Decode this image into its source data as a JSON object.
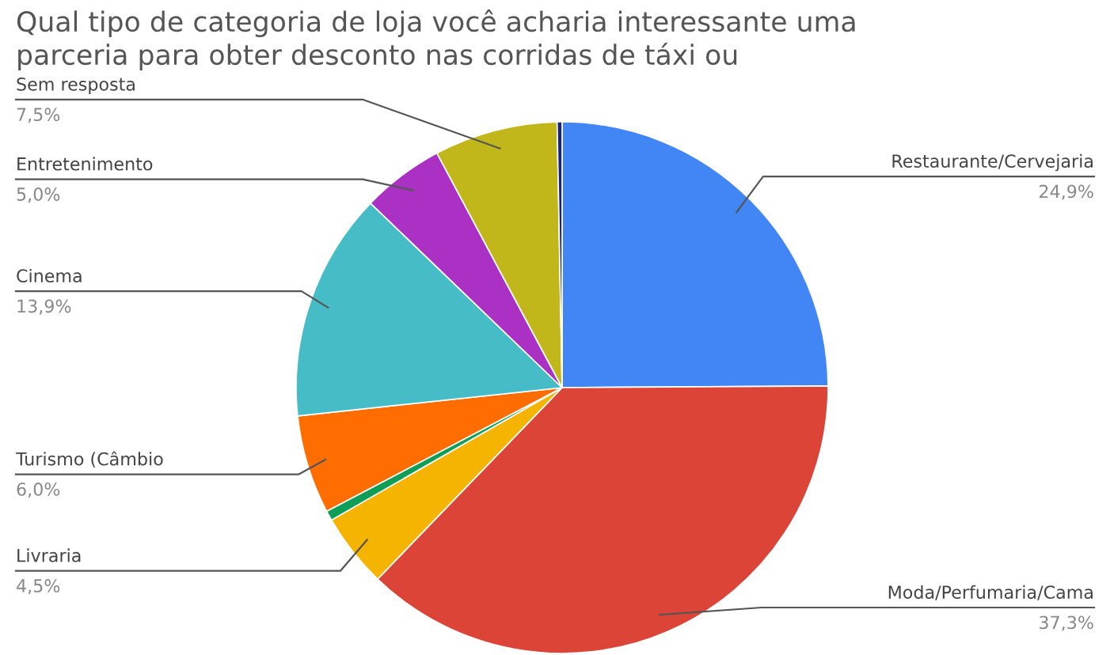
{
  "chart_data": {
    "type": "pie",
    "title": "Qual tipo de categoria de loja você acharia interessante uma\nparceria para obter desconto nas corridas de táxi ou",
    "categories": [
      "Restaurante/Cervejaria",
      "Moda/Perfumaria/Cama",
      "Livraria",
      null,
      "Turismo (Câmbio",
      "Cinema",
      "Entretenimento",
      "Sem resposta",
      null
    ],
    "values": [
      24.9,
      37.3,
      4.5,
      0.6,
      6.0,
      13.9,
      5.0,
      7.5,
      0.3
    ],
    "value_labels": [
      "24,9%",
      "37,3%",
      "4,5%",
      null,
      "6,0%",
      "13,9%",
      "5,0%",
      "7,5%",
      null
    ],
    "colors": [
      "#4285f4",
      "#db4437",
      "#f4b400",
      "#0f9d58",
      "#ff6d01",
      "#46bdc6",
      "#ab30c4",
      "#c2b71a",
      "#1a237e"
    ],
    "legend": false
  }
}
